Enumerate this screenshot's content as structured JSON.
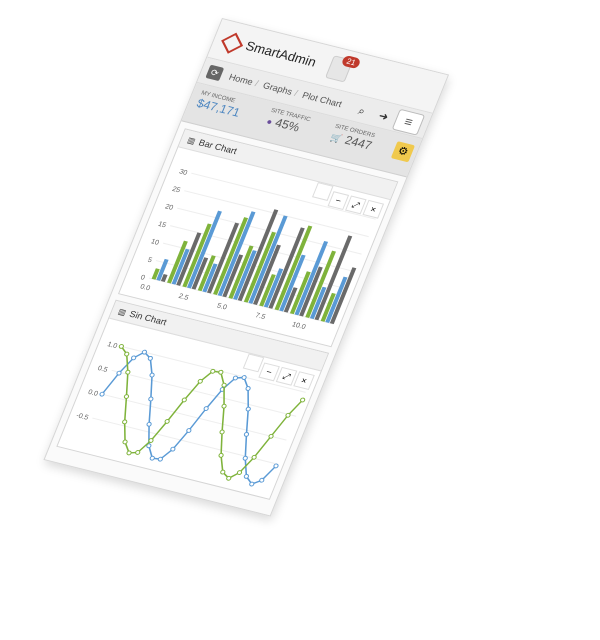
{
  "app": {
    "brand": "SmartAdmin",
    "notification_count": "21"
  },
  "breadcrumb": {
    "items": [
      "Home",
      "Graphs",
      "Plot Chart"
    ]
  },
  "toolbar": {
    "search_icon": "search-icon",
    "logout_icon": "logout-icon",
    "menu_icon": "menu-icon"
  },
  "stats": {
    "income_label": "MY INCOME",
    "income_value": "$47,171",
    "traffic_label": "SITE TRAFFIC",
    "traffic_value": "45%",
    "orders_label": "SITE ORDERS",
    "orders_value": "2447"
  },
  "widgets": {
    "bar_title": "Bar Chart",
    "sin_title": "Sin Chart"
  },
  "colors": {
    "green": "#7fb33b",
    "blue": "#5a9ad5",
    "gray": "#6a6a6a",
    "accent": "#c0392b"
  },
  "chart_data": [
    {
      "type": "bar",
      "title": "Bar Chart",
      "x_ticks": [
        "0.0",
        "2.5",
        "5.0",
        "7.5",
        "10.0"
      ],
      "y_ticks": [
        "0",
        "5",
        "10",
        "15",
        "20",
        "25",
        "30"
      ],
      "ylim": [
        0,
        30
      ],
      "xlim": [
        0,
        12
      ],
      "series": [
        {
          "x": [
            0.3,
            1.3,
            2.3,
            3.3,
            4.3,
            5.3,
            6.3,
            7.3,
            8.3,
            9.3,
            10.3,
            11.3
          ],
          "values": [
            3,
            12,
            18,
            10,
            22,
            15,
            20,
            9,
            24,
            12,
            19,
            8
          ],
          "color": "green"
        },
        {
          "x": [
            0.6,
            1.6,
            2.6,
            3.6,
            4.6,
            5.6,
            6.6,
            7.6,
            8.6,
            9.6,
            10.6,
            11.6
          ],
          "values": [
            6,
            10,
            22,
            8,
            24,
            14,
            25,
            11,
            16,
            21,
            9,
            13
          ],
          "color": "blue"
        },
        {
          "x": [
            0.9,
            1.9,
            2.9,
            3.9,
            4.9,
            5.9,
            6.9,
            7.9,
            8.9,
            9.9,
            10.9,
            11.9
          ],
          "values": [
            2,
            15,
            9,
            20,
            12,
            26,
            17,
            23,
            7,
            14,
            24,
            16
          ],
          "color": "gray"
        }
      ]
    },
    {
      "type": "line",
      "title": "Sin Chart",
      "y_ticks": [
        "1.0",
        "0.5",
        "0.0",
        "-0.5"
      ],
      "ylim": [
        -1,
        1
      ],
      "series": [
        {
          "x": [
            0,
            0.5,
            1,
            1.5,
            2,
            2.5,
            3,
            3.5,
            4,
            4.5,
            5,
            5.5,
            6,
            6.5,
            7,
            7.5,
            8,
            8.5,
            9,
            9.5,
            10,
            10.5,
            11,
            11.5,
            12
          ],
          "values": [
            0.0,
            0.48,
            0.84,
            1.0,
            0.91,
            0.6,
            0.14,
            -0.35,
            -0.76,
            -0.98,
            -0.96,
            -0.71,
            -0.28,
            0.22,
            0.66,
            0.94,
            0.99,
            0.8,
            0.41,
            -0.08,
            -0.54,
            -0.88,
            -1.0,
            -0.88,
            -0.54
          ],
          "color": "blue"
        },
        {
          "x": [
            0,
            0.5,
            1,
            1.5,
            2,
            2.5,
            3,
            3.5,
            4,
            4.5,
            5,
            5.5,
            6,
            6.5,
            7,
            7.5,
            8,
            8.5,
            9,
            9.5,
            10,
            10.5,
            11,
            11.5,
            12
          ],
          "values": [
            1.0,
            0.88,
            0.54,
            0.07,
            -0.42,
            -0.8,
            -0.99,
            -0.94,
            -0.65,
            -0.21,
            0.28,
            0.71,
            0.96,
            0.98,
            0.75,
            0.35,
            -0.15,
            -0.6,
            -0.91,
            -1.0,
            -0.84,
            -0.48,
            0.0,
            0.48,
            0.84
          ],
          "color": "green"
        }
      ]
    }
  ]
}
